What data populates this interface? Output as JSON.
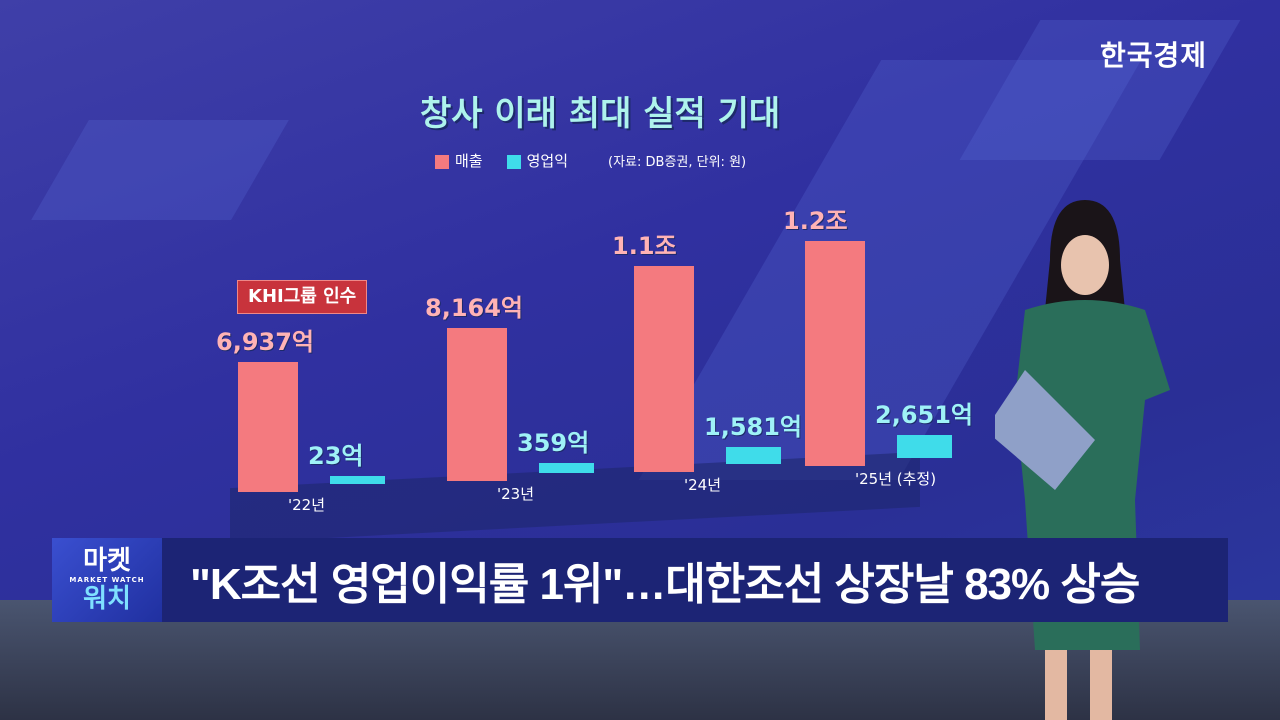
{
  "broadcaster_logo": "한국경제",
  "chart_data": {
    "type": "bar",
    "title": "창사 이래 최대 실적 기대",
    "source_note": "(자료: DB증권, 단위: 원)",
    "categories": [
      "'22년",
      "'23년",
      "'24년",
      "'25년 (추정)"
    ],
    "series": [
      {
        "name": "매출",
        "color": "#f47a7f",
        "values": [
          6937,
          8164,
          11000,
          12000
        ],
        "labels": [
          "6,937억",
          "8,164억",
          "1.1조",
          "1.2조"
        ]
      },
      {
        "name": "영업익",
        "color": "#3fdcea",
        "values": [
          23,
          359,
          1581,
          2651
        ],
        "labels": [
          "23억",
          "359억",
          "1,581억",
          "2,651억"
        ]
      }
    ],
    "unit": "억원",
    "annotation": "KHI그룹 인수",
    "legend_position": "top-left"
  },
  "ticker": {
    "program_top": "마켓",
    "program_sub": "MARKET WATCH",
    "program_bottom": "워치",
    "headline": "\"K조선 영업이익률 1위\"…대한조선 상장날 83% 상승"
  }
}
